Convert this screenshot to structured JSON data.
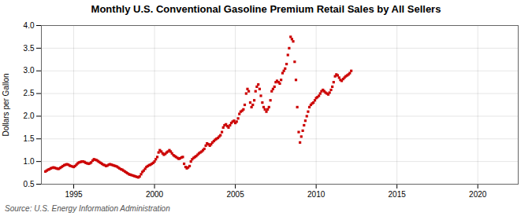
{
  "chart_data": {
    "type": "scatter",
    "title": "Monthly U.S. Conventional Gasoline Premium Retail Sales by All Sellers",
    "ylabel": "Dollars per Gallon",
    "source": "Source: U.S. Energy Information Administration",
    "color": "#cc0000",
    "marker": "square",
    "grid": true,
    "xlim": [
      1993.0,
      2022.5
    ],
    "ylim": [
      0.5,
      4.0
    ],
    "xticks": [
      1995,
      2000,
      2005,
      2010,
      2015,
      2020
    ],
    "yticks": [
      0.5,
      {
        "value": 1.0,
        "label": "1.0"
      },
      1.5,
      {
        "value": 2.0,
        "label": "2.0"
      },
      2.5,
      {
        "value": 3.0,
        "label": "3.0"
      },
      3.5,
      {
        "value": 4.0,
        "label": "4.0"
      }
    ],
    "x": [
      1993.25,
      1993.33,
      1993.42,
      1993.5,
      1993.58,
      1993.67,
      1993.75,
      1993.83,
      1993.92,
      1994.0,
      1994.08,
      1994.17,
      1994.25,
      1994.33,
      1994.42,
      1994.5,
      1994.58,
      1994.67,
      1994.75,
      1994.83,
      1994.92,
      1995.0,
      1995.08,
      1995.17,
      1995.25,
      1995.33,
      1995.42,
      1995.5,
      1995.58,
      1995.67,
      1995.75,
      1995.83,
      1995.92,
      1996.0,
      1996.08,
      1996.17,
      1996.25,
      1996.33,
      1996.42,
      1996.5,
      1996.58,
      1996.67,
      1996.75,
      1996.83,
      1996.92,
      1997.0,
      1997.08,
      1997.17,
      1997.25,
      1997.33,
      1997.42,
      1997.5,
      1997.58,
      1997.67,
      1997.75,
      1997.83,
      1997.92,
      1998.0,
      1998.08,
      1998.17,
      1998.25,
      1998.33,
      1998.42,
      1998.5,
      1998.58,
      1998.67,
      1998.75,
      1998.83,
      1998.92,
      1999.0,
      1999.08,
      1999.17,
      1999.25,
      1999.33,
      1999.42,
      1999.5,
      1999.58,
      1999.67,
      1999.75,
      1999.83,
      1999.92,
      2000.0,
      2000.08,
      2000.17,
      2000.25,
      2000.33,
      2000.42,
      2000.5,
      2000.58,
      2000.67,
      2000.75,
      2000.83,
      2000.92,
      2001.0,
      2001.08,
      2001.17,
      2001.25,
      2001.33,
      2001.42,
      2001.5,
      2001.58,
      2001.67,
      2001.75,
      2001.83,
      2001.92,
      2002.0,
      2002.08,
      2002.17,
      2002.25,
      2002.33,
      2002.42,
      2002.5,
      2002.58,
      2002.67,
      2002.75,
      2002.83,
      2002.92,
      2003.0,
      2003.08,
      2003.17,
      2003.25,
      2003.33,
      2003.42,
      2003.5,
      2003.58,
      2003.67,
      2003.75,
      2003.83,
      2003.92,
      2004.0,
      2004.08,
      2004.17,
      2004.25,
      2004.33,
      2004.42,
      2004.5,
      2004.58,
      2004.67,
      2004.75,
      2004.83,
      2004.92,
      2005.0,
      2005.08,
      2005.17,
      2005.25,
      2005.33,
      2005.42,
      2005.5,
      2005.58,
      2005.67,
      2005.75,
      2005.83,
      2005.92,
      2006.0,
      2006.08,
      2006.17,
      2006.25,
      2006.33,
      2006.42,
      2006.5,
      2006.58,
      2006.67,
      2006.75,
      2006.83,
      2006.92,
      2007.0,
      2007.08,
      2007.17,
      2007.25,
      2007.33,
      2007.42,
      2007.5,
      2007.58,
      2007.67,
      2007.75,
      2007.83,
      2007.92,
      2008.0,
      2008.08,
      2008.17,
      2008.25,
      2008.33,
      2008.42,
      2008.5,
      2008.58,
      2008.67,
      2008.75,
      2008.83,
      2008.92,
      2009.0,
      2009.08,
      2009.17,
      2009.25,
      2009.33,
      2009.42,
      2009.5,
      2009.58,
      2009.67,
      2009.75,
      2009.83,
      2009.92,
      2010.0,
      2010.08,
      2010.17,
      2010.25,
      2010.33,
      2010.42,
      2010.5,
      2010.58,
      2010.67,
      2010.75,
      2010.83,
      2010.92,
      2011.0,
      2011.08,
      2011.17,
      2011.25,
      2011.33,
      2011.42,
      2011.5,
      2011.58,
      2011.67,
      2011.75,
      2011.83,
      2011.92,
      2012.0,
      2012.08,
      2012.17
    ],
    "values": [
      0.78,
      0.8,
      0.82,
      0.83,
      0.85,
      0.86,
      0.87,
      0.86,
      0.85,
      0.84,
      0.84,
      0.86,
      0.88,
      0.9,
      0.92,
      0.93,
      0.94,
      0.93,
      0.91,
      0.9,
      0.89,
      0.88,
      0.9,
      0.93,
      0.96,
      0.98,
      0.99,
      1.0,
      1.0,
      0.99,
      0.97,
      0.96,
      0.95,
      0.96,
      0.98,
      1.02,
      1.05,
      1.04,
      1.03,
      1.01,
      0.99,
      0.97,
      0.95,
      0.93,
      0.92,
      0.9,
      0.91,
      0.93,
      0.94,
      0.93,
      0.92,
      0.91,
      0.9,
      0.89,
      0.87,
      0.85,
      0.83,
      0.82,
      0.8,
      0.78,
      0.76,
      0.74,
      0.72,
      0.71,
      0.7,
      0.69,
      0.68,
      0.67,
      0.66,
      0.65,
      0.67,
      0.72,
      0.77,
      0.8,
      0.84,
      0.88,
      0.9,
      0.92,
      0.93,
      0.95,
      0.97,
      1.0,
      1.05,
      1.1,
      1.2,
      1.25,
      1.22,
      1.18,
      1.15,
      1.17,
      1.2,
      1.22,
      1.25,
      1.22,
      1.18,
      1.14,
      1.12,
      1.1,
      1.08,
      1.06,
      1.07,
      1.09,
      1.1,
      0.95,
      0.88,
      0.85,
      0.87,
      0.9,
      1.0,
      1.05,
      1.08,
      1.1,
      1.12,
      1.15,
      1.18,
      1.2,
      1.22,
      1.25,
      1.28,
      1.35,
      1.4,
      1.38,
      1.35,
      1.38,
      1.42,
      1.45,
      1.48,
      1.5,
      1.52,
      1.55,
      1.58,
      1.65,
      1.75,
      1.8,
      1.82,
      1.78,
      1.75,
      1.8,
      1.85,
      1.88,
      1.9,
      1.85,
      1.88,
      1.95,
      2.05,
      2.1,
      2.12,
      2.15,
      2.25,
      2.5,
      2.6,
      2.55,
      2.3,
      2.2,
      2.25,
      2.35,
      2.55,
      2.65,
      2.7,
      2.6,
      2.45,
      2.3,
      2.2,
      2.15,
      2.1,
      2.15,
      2.2,
      2.35,
      2.55,
      2.6,
      2.65,
      2.75,
      2.78,
      2.75,
      2.72,
      2.8,
      2.95,
      3.0,
      3.05,
      3.15,
      3.35,
      3.5,
      3.75,
      3.7,
      3.65,
      3.2,
      2.8,
      2.2,
      1.65,
      1.42,
      1.55,
      1.68,
      1.8,
      1.9,
      2.0,
      2.1,
      2.2,
      2.25,
      2.28,
      2.3,
      2.35,
      2.4,
      2.42,
      2.45,
      2.5,
      2.55,
      2.58,
      2.55,
      2.52,
      2.5,
      2.48,
      2.52,
      2.58,
      2.65,
      2.75,
      2.88,
      2.92,
      2.9,
      2.85,
      2.8,
      2.78,
      2.82,
      2.85,
      2.88,
      2.9,
      2.92,
      2.95,
      3.0
    ]
  }
}
